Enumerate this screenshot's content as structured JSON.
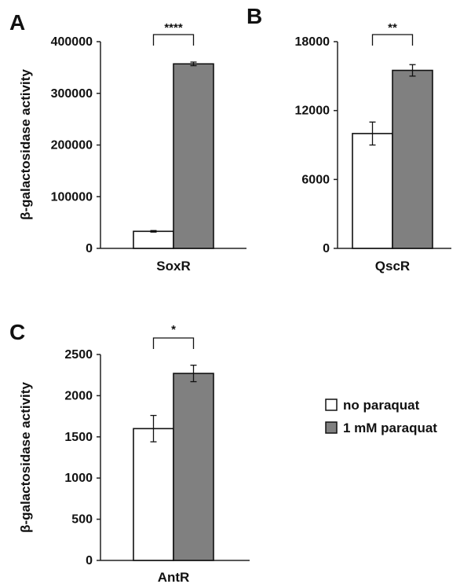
{
  "chart_data": [
    {
      "panel": "A",
      "type": "bar",
      "categories": [
        "SoxR"
      ],
      "ylabel": "β-galactosidase activity",
      "ylim": [
        0,
        400000
      ],
      "yticks": [
        "0",
        "100000",
        "200000",
        "300000",
        "400000"
      ],
      "series": [
        {
          "name": "no paraquat",
          "values": [
            33000
          ],
          "errors": [
            1500
          ],
          "color": "#ffffff"
        },
        {
          "name": "1 mM paraquat",
          "values": [
            357000
          ],
          "errors": [
            3500
          ],
          "color": "#808080"
        }
      ],
      "significance": "****"
    },
    {
      "panel": "B",
      "type": "bar",
      "categories": [
        "QscR"
      ],
      "ylim": [
        0,
        18000
      ],
      "yticks": [
        "0",
        "6000",
        "12000",
        "18000"
      ],
      "series": [
        {
          "name": "no paraquat",
          "values": [
            10000
          ],
          "errors": [
            1000
          ],
          "color": "#ffffff"
        },
        {
          "name": "1 mM paraquat",
          "values": [
            15500
          ],
          "errors": [
            500
          ],
          "color": "#808080"
        }
      ],
      "significance": "**"
    },
    {
      "panel": "C",
      "type": "bar",
      "categories": [
        "AntR"
      ],
      "ylabel": "β-galactosidase activity",
      "ylim": [
        0,
        2500
      ],
      "yticks": [
        "0",
        "500",
        "1000",
        "1500",
        "2000",
        "2500"
      ],
      "series": [
        {
          "name": "no paraquat",
          "values": [
            1600
          ],
          "errors": [
            160
          ],
          "color": "#ffffff"
        },
        {
          "name": "1 mM paraquat",
          "values": [
            2270
          ],
          "errors": [
            100
          ],
          "color": "#808080"
        }
      ],
      "significance": "*"
    }
  ],
  "legend": [
    {
      "label": "no paraquat",
      "color": "#ffffff"
    },
    {
      "label": "1 mM paraquat",
      "color": "#808080"
    }
  ]
}
